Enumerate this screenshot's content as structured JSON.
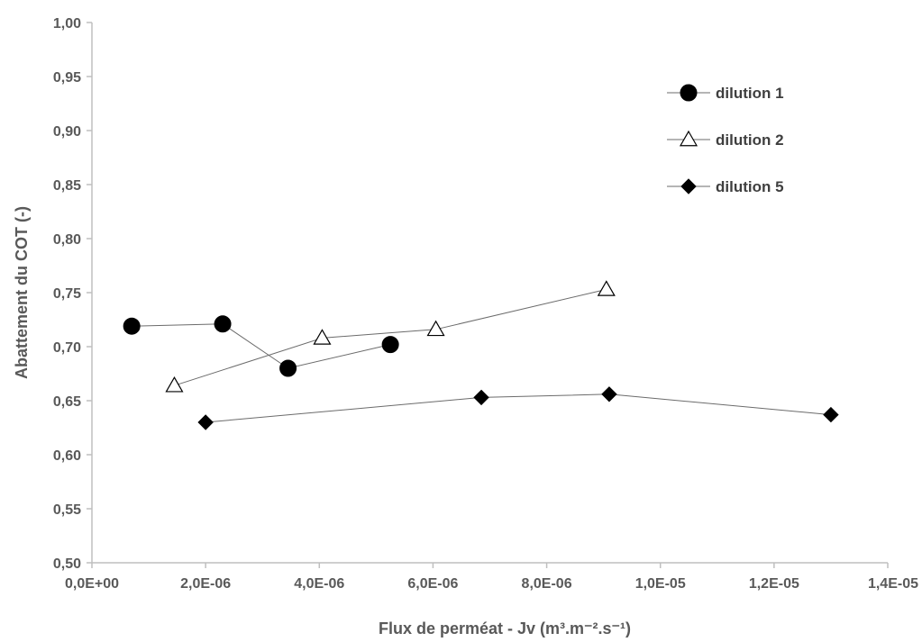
{
  "chart_data": {
    "type": "scatter",
    "xlabel": "Flux de perméat - Jv (m³.m⁻².s⁻¹)",
    "ylabel": "Abattement du COT  (-)",
    "xlim": [
      0,
      1.4e-05
    ],
    "ylim": [
      0.5,
      1.0
    ],
    "x_tick_labels": [
      "0,0E+00",
      "2,0E-06",
      "4,0E-06",
      "6,0E-06",
      "8,0E-06",
      "1,0E-05",
      "1,2E-05",
      "1,4E-05"
    ],
    "x_ticks": [
      0,
      2e-06,
      4e-06,
      6e-06,
      8e-06,
      1e-05,
      1.2e-05,
      1.4e-05
    ],
    "y_tick_labels": [
      "0,50",
      "0,55",
      "0,60",
      "0,65",
      "0,70",
      "0,75",
      "0,80",
      "0,85",
      "0,90",
      "0,95",
      "1,00"
    ],
    "y_ticks": [
      0.5,
      0.55,
      0.6,
      0.65,
      0.7,
      0.75,
      0.8,
      0.85,
      0.9,
      0.95,
      1.0
    ],
    "grid": false,
    "legend_position": "top-right",
    "series": [
      {
        "name": "dilution 1",
        "marker": "circle-filled",
        "color": "#000000",
        "x": [
          7e-07,
          2.3e-06,
          3.45e-06,
          5.25e-06
        ],
        "y": [
          0.719,
          0.721,
          0.68,
          0.702
        ]
      },
      {
        "name": "dilution 2",
        "marker": "triangle-open",
        "color": "#000000",
        "x": [
          1.45e-06,
          4.05e-06,
          6.05e-06,
          9.05e-06
        ],
        "y": [
          0.664,
          0.708,
          0.716,
          0.753
        ]
      },
      {
        "name": "dilution 5",
        "marker": "diamond-filled",
        "color": "#000000",
        "x": [
          2e-06,
          6.85e-06,
          9.1e-06,
          1.3e-05
        ],
        "y": [
          0.63,
          0.653,
          0.656,
          0.637
        ]
      }
    ]
  }
}
